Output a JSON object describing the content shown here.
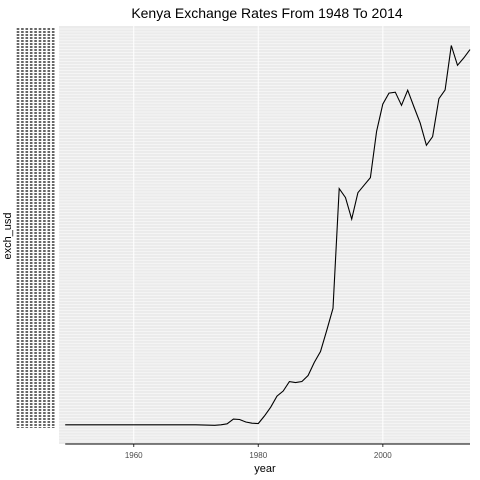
{
  "chart_data": {
    "type": "line",
    "title": "Kenya Exchange Rates From 1948 To 2014",
    "xlabel": "year",
    "ylabel": "exch_usd",
    "xlim": [
      1948,
      2014
    ],
    "x_ticks": [
      "1960",
      "1980",
      "2000"
    ],
    "x_tick_values": [
      1960,
      1980,
      2000
    ],
    "y_axis": "categorical",
    "y_tick_labels_legible": false,
    "grid": true,
    "colors": {
      "line": "#000000",
      "panel_background": "#ebebeb",
      "grid": "#ffffff",
      "tick_text": "#4d4d4d"
    },
    "series": [
      {
        "x": [
          1949,
          1950,
          1951,
          1960,
          1970,
          1973,
          1974,
          1975,
          1976,
          1977,
          1978,
          1979,
          1980,
          1981,
          1982,
          1983,
          1984,
          1985,
          1986,
          1987,
          1988,
          1989,
          1990,
          1991,
          1992,
          1993,
          1994,
          1995,
          1996,
          1997,
          1998,
          1999,
          2000,
          2001,
          2002,
          2003,
          2004,
          2005,
          2006,
          2007,
          2008,
          2009,
          2010,
          2011,
          2012,
          2013,
          2014
        ],
        "values": [
          7.143,
          7.143,
          7.143,
          7.143,
          7.143,
          7.021,
          7.136,
          7.344,
          8.367,
          8.277,
          7.729,
          7.475,
          7.42,
          9.047,
          10.922,
          13.312,
          14.414,
          16.432,
          16.226,
          16.454,
          17.747,
          20.572,
          22.915,
          27.508,
          32.217,
          58.001,
          56.051,
          51.43,
          57.115,
          58.732,
          60.367,
          70.326,
          76.176,
          78.563,
          78.749,
          75.936,
          79.174,
          75.554,
          72.101,
          67.318,
          69.175,
          77.352,
          79.233,
          88.811,
          84.53,
          86.123,
          87.922
        ]
      }
    ]
  }
}
